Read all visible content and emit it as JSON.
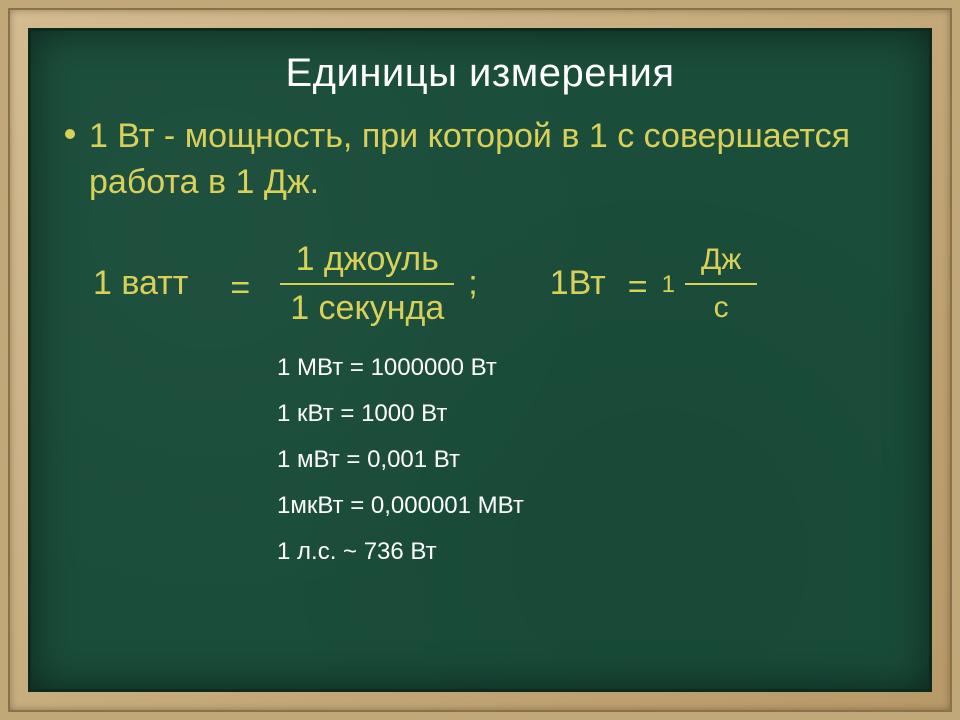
{
  "colors": {
    "frame_wood": "#c0a878",
    "chalkboard": "#1a4d3a",
    "accent_yellow": "#d9d05a",
    "text_white": "#ffffff"
  },
  "typography": {
    "title_fontsize": 40,
    "body_fontsize": 34,
    "conversion_fontsize": 24,
    "small_frac_fontsize": 30
  },
  "title": "Единицы измерения",
  "definition": "1 Вт - мощность, при которой в 1 с совершается работа в 1 Дж.",
  "equation": {
    "lhs": "1 ватт",
    "eq": "=",
    "numerator": "1 джоуль",
    "denominator": "1 секунда",
    "separator": ";",
    "rhs_lhs": "1Вт",
    "rhs_eq": "=",
    "rhs_coef": "1",
    "rhs_num": "Дж",
    "rhs_den": "с"
  },
  "conversions": [
    "1 МВт = 1000000 Вт",
    "1 кВт = 1000 Вт",
    "1 мВт = 0,001 Вт",
    "1мкВт = 0,000001 МВт",
    " 1 л.с. ~ 736 Вт"
  ]
}
